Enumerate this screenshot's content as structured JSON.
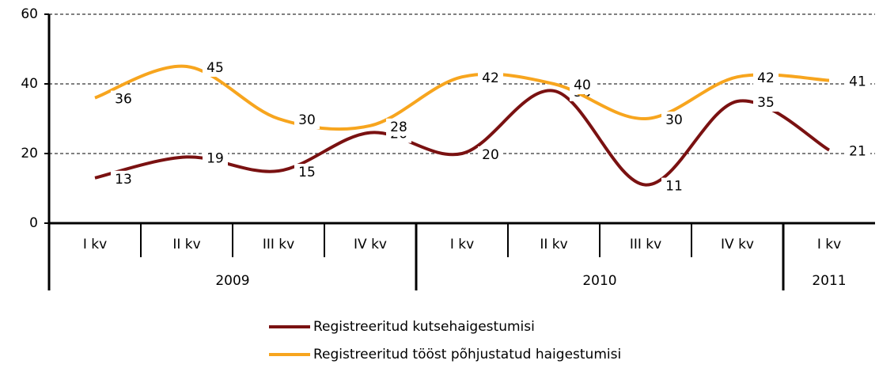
{
  "chart_data": {
    "type": "line",
    "categories": [
      "I kv",
      "II kv",
      "III kv",
      "IV kv",
      "I kv",
      "II kv",
      "III kv",
      "IV kv",
      "I kv"
    ],
    "x_groups": [
      {
        "label": "2009",
        "count": 4
      },
      {
        "label": "2010",
        "count": 4
      },
      {
        "label": "2011",
        "count": 1
      }
    ],
    "series": [
      {
        "name": "Registreeritud kutsehaigestumisi",
        "color": "#7a1111",
        "values": [
          13,
          19,
          15,
          26,
          20,
          38,
          11,
          35,
          21
        ]
      },
      {
        "name": "Registreeritud tööst põhjustatud haigestumisi",
        "color": "#f7a51e",
        "values": [
          36,
          45,
          30,
          28,
          42,
          40,
          30,
          42,
          41
        ]
      }
    ],
    "ylim": [
      0,
      60
    ],
    "yticks": [
      0,
      20,
      40,
      60
    ],
    "grid": true,
    "smooth": true,
    "legend": "bottom"
  }
}
